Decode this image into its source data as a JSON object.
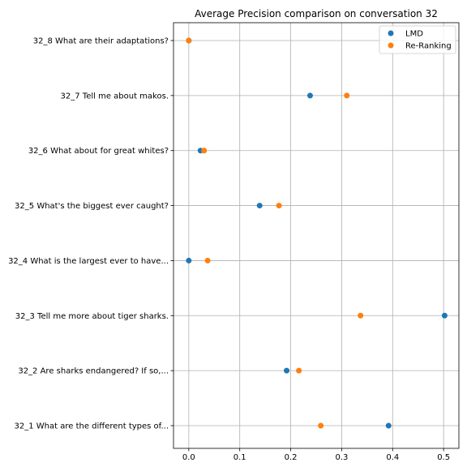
{
  "chart_data": {
    "type": "scatter",
    "title": "Average Precision comparison on conversation 32",
    "xlabel": "",
    "ylabel": "",
    "xlim": [
      -0.03,
      0.53
    ],
    "xticks": [
      0.0,
      0.1,
      0.2,
      0.3,
      0.4,
      0.5
    ],
    "xtick_labels": [
      "0.0",
      "0.1",
      "0.2",
      "0.3",
      "0.4",
      "0.5"
    ],
    "categories": [
      "32_1 What are the different types of...",
      "32_2 Are sharks endangered? If so,...",
      "32_3 Tell me more about tiger sharks.",
      "32_4 What is the largest ever to have...",
      "32_5 What's the biggest ever caught?",
      "32_6 What about for great whites?",
      "32_7 Tell me about makos.",
      "32_8 What are their adaptations?"
    ],
    "series": [
      {
        "name": "LMD",
        "color": "#1f77b4",
        "values": [
          0.392,
          0.192,
          0.502,
          0.0,
          0.139,
          0.023,
          0.238,
          0.0
        ]
      },
      {
        "name": "Re-Ranking",
        "color": "#ff7f0e",
        "values": [
          0.259,
          0.216,
          0.337,
          0.037,
          0.177,
          0.03,
          0.31,
          0.0
        ]
      }
    ],
    "grid": true,
    "legend_position": "top-right"
  }
}
